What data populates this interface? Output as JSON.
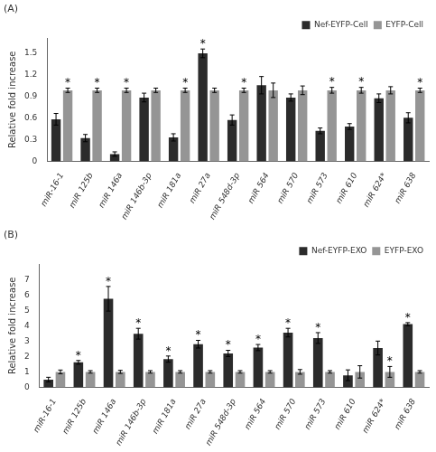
{
  "chart_data": [
    {
      "type": "bar",
      "title": "(A)",
      "ylabel": "Relative fold increase",
      "categories": [
        "miR-16-1",
        "miR 125b",
        "miR 146a",
        "miR 146b-3p",
        "miR 181a",
        "miR 27a",
        "miR 548d-3p",
        "miR 564",
        "miR 570",
        "miR 573",
        "miR 610",
        "miR 624*",
        "miR 638"
      ],
      "series": [
        {
          "name": "Nef-EYFP-Cell",
          "color": "#2b2b2b",
          "values": [
            0.58,
            0.32,
            0.1,
            0.88,
            0.33,
            1.49,
            0.57,
            1.05,
            0.88,
            0.42,
            0.48,
            0.87,
            0.6
          ],
          "errors": [
            0.08,
            0.05,
            0.03,
            0.06,
            0.05,
            0.06,
            0.07,
            0.12,
            0.05,
            0.04,
            0.04,
            0.06,
            0.07
          ]
        },
        {
          "name": "EYFP-Cell",
          "color": "#959595",
          "values": [
            0.98,
            0.98,
            0.98,
            0.98,
            0.98,
            0.98,
            0.98,
            0.98,
            0.98,
            0.98,
            0.98,
            0.98,
            0.98
          ],
          "errors": [
            0.03,
            0.03,
            0.03,
            0.03,
            0.03,
            0.03,
            0.03,
            0.1,
            0.06,
            0.04,
            0.04,
            0.05,
            0.03
          ]
        }
      ],
      "annotations": [
        {
          "text": "*",
          "series": "Nef-EYFP-Cell",
          "category": "miR 27a"
        },
        {
          "text": "*",
          "series": "EYFP-Cell",
          "category": "miR-16-1"
        },
        {
          "text": "*",
          "series": "EYFP-Cell",
          "category": "miR 125b"
        },
        {
          "text": "*",
          "series": "EYFP-Cell",
          "category": "miR 146a"
        },
        {
          "text": "*",
          "series": "EYFP-Cell",
          "category": "miR 181a"
        },
        {
          "text": "*",
          "series": "EYFP-Cell",
          "category": "miR 548d-3p"
        },
        {
          "text": "*",
          "series": "EYFP-Cell",
          "category": "miR 573"
        },
        {
          "text": "*",
          "series": "EYFP-Cell",
          "category": "miR 610"
        },
        {
          "text": "*",
          "series": "EYFP-Cell",
          "category": "miR 638"
        }
      ],
      "ylim": [
        0,
        1.7
      ],
      "yticks": [
        0,
        0.3,
        0.6,
        0.9,
        1.2,
        1.5
      ],
      "grid": false,
      "legend": "upper right"
    },
    {
      "type": "bar",
      "title": "(B)",
      "ylabel": "Relative fold increase",
      "categories": [
        "miR-16-1",
        "miR 125b",
        "miR 146a",
        "miR 146b-3p",
        "miR 181a",
        "miR 27a",
        "miR 548d-3p",
        "miR 564",
        "miR 570",
        "miR 573",
        "miR 610",
        "miR 624*",
        "miR 638"
      ],
      "series": [
        {
          "name": "Nef-EYFP-EXO",
          "color": "#2b2b2b",
          "values": [
            0.5,
            1.62,
            5.75,
            3.48,
            1.83,
            2.8,
            2.2,
            2.58,
            3.55,
            3.2,
            0.78,
            2.55,
            4.1
          ],
          "errors": [
            0.15,
            0.12,
            0.8,
            0.35,
            0.2,
            0.25,
            0.2,
            0.2,
            0.28,
            0.35,
            0.35,
            0.45,
            0.1
          ]
        },
        {
          "name": "EYFP-EXO",
          "color": "#959595",
          "values": [
            1.0,
            1.0,
            1.0,
            1.0,
            1.0,
            1.0,
            1.0,
            1.0,
            1.0,
            1.0,
            1.0,
            1.0,
            1.0
          ],
          "errors": [
            0.12,
            0.08,
            0.1,
            0.08,
            0.08,
            0.08,
            0.08,
            0.08,
            0.15,
            0.08,
            0.4,
            0.35,
            0.08
          ]
        }
      ],
      "annotations": [
        {
          "text": "*",
          "series": "Nef-EYFP-EXO",
          "category": "miR 125b"
        },
        {
          "text": "*",
          "series": "Nef-EYFP-EXO",
          "category": "miR 146a"
        },
        {
          "text": "*",
          "series": "Nef-EYFP-EXO",
          "category": "miR 146b-3p"
        },
        {
          "text": "*",
          "series": "Nef-EYFP-EXO",
          "category": "miR 181a"
        },
        {
          "text": "*",
          "series": "Nef-EYFP-EXO",
          "category": "miR 27a"
        },
        {
          "text": "*",
          "series": "Nef-EYFP-EXO",
          "category": "miR 548d-3p"
        },
        {
          "text": "*",
          "series": "Nef-EYFP-EXO",
          "category": "miR 564"
        },
        {
          "text": "*",
          "series": "Nef-EYFP-EXO",
          "category": "miR 570"
        },
        {
          "text": "*",
          "series": "Nef-EYFP-EXO",
          "category": "miR 573"
        },
        {
          "text": "*",
          "series": "Nef-EYFP-EXO",
          "category": "miR 638"
        },
        {
          "text": "*",
          "series": "EYFP-EXO",
          "category": "miR 624*"
        }
      ],
      "ylim": [
        0,
        8
      ],
      "yticks": [
        0,
        1,
        2,
        3,
        4,
        5,
        6,
        7
      ],
      "grid": false,
      "legend": "upper right"
    }
  ]
}
